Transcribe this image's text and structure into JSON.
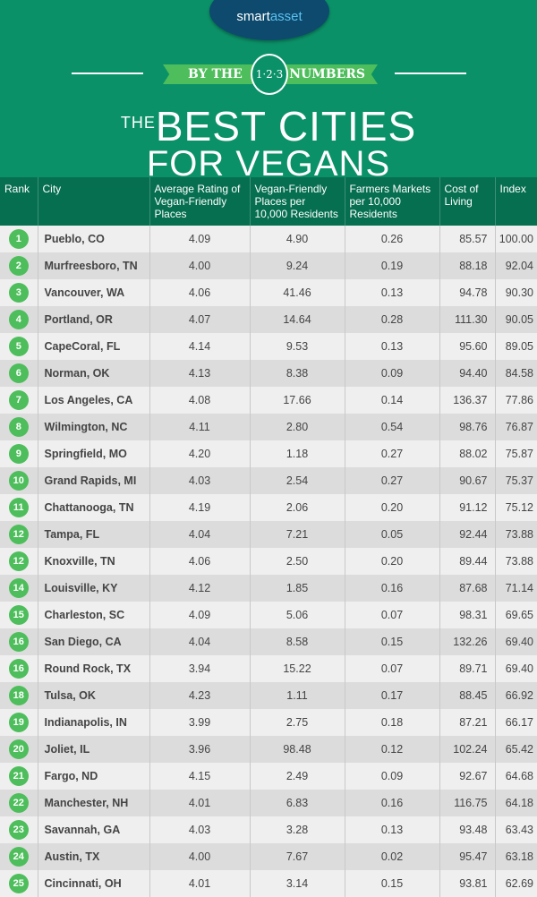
{
  "brand": {
    "logo_part1": "smart",
    "logo_part2": "asset"
  },
  "banner": {
    "left": "BY THE",
    "badge": "1·2·3",
    "right": "NUMBERS"
  },
  "title": {
    "the": "THE",
    "line1": "BEST CITIES",
    "line2": "FOR VEGANS"
  },
  "colors": {
    "background": "#0b9168",
    "header": "#066f50",
    "accent": "#4dbe5b",
    "logo": "#0d4a6e"
  },
  "table": {
    "headers": [
      "Rank",
      "City",
      "Average Rating of Vegan-Friendly Places",
      "Vegan-Friendly Places per 10,000 Residents",
      "Farmers Markets per 10,000 Residents",
      "Cost of Living",
      "Index"
    ],
    "rows": [
      [
        "1",
        "Pueblo, CO",
        "4.09",
        "4.90",
        "0.26",
        "85.57",
        "100.00"
      ],
      [
        "2",
        "Murfreesboro, TN",
        "4.00",
        "9.24",
        "0.19",
        "88.18",
        "92.04"
      ],
      [
        "3",
        "Vancouver, WA",
        "4.06",
        "41.46",
        "0.13",
        "94.78",
        "90.30"
      ],
      [
        "4",
        "Portland, OR",
        "4.07",
        "14.64",
        "0.28",
        "111.30",
        "90.05"
      ],
      [
        "5",
        "CapeCoral, FL",
        "4.14",
        "9.53",
        "0.13",
        "95.60",
        "89.05"
      ],
      [
        "6",
        "Norman, OK",
        "4.13",
        "8.38",
        "0.09",
        "94.40",
        "84.58"
      ],
      [
        "7",
        "Los Angeles, CA",
        "4.08",
        "17.66",
        "0.14",
        "136.37",
        "77.86"
      ],
      [
        "8",
        "Wilmington, NC",
        "4.11",
        "2.80",
        "0.54",
        "98.76",
        "76.87"
      ],
      [
        "9",
        "Springfield, MO",
        "4.20",
        "1.18",
        "0.27",
        "88.02",
        "75.87"
      ],
      [
        "10",
        "Grand Rapids, MI",
        "4.03",
        "2.54",
        "0.27",
        "90.67",
        "75.37"
      ],
      [
        "11",
        "Chattanooga, TN",
        "4.19",
        "2.06",
        "0.20",
        "91.12",
        "75.12"
      ],
      [
        "12",
        "Tampa, FL",
        "4.04",
        "7.21",
        "0.05",
        "92.44",
        "73.88"
      ],
      [
        "12",
        "Knoxville, TN",
        "4.06",
        "2.50",
        "0.20",
        "89.44",
        "73.88"
      ],
      [
        "14",
        "Louisville, KY",
        "4.12",
        "1.85",
        "0.16",
        "87.68",
        "71.14"
      ],
      [
        "15",
        "Charleston, SC",
        "4.09",
        "5.06",
        "0.07",
        "98.31",
        "69.65"
      ],
      [
        "16",
        "San Diego, CA",
        "4.04",
        "8.58",
        "0.15",
        "132.26",
        "69.40"
      ],
      [
        "16",
        "Round Rock, TX",
        "3.94",
        "15.22",
        "0.07",
        "89.71",
        "69.40"
      ],
      [
        "18",
        "Tulsa, OK",
        "4.23",
        "1.11",
        "0.17",
        "88.45",
        "66.92"
      ],
      [
        "19",
        "Indianapolis, IN",
        "3.99",
        "2.75",
        "0.18",
        "87.21",
        "66.17"
      ],
      [
        "20",
        "Joliet, IL",
        "3.96",
        "98.48",
        "0.12",
        "102.24",
        "65.42"
      ],
      [
        "21",
        "Fargo, ND",
        "4.15",
        "2.49",
        "0.09",
        "92.67",
        "64.68"
      ],
      [
        "22",
        "Manchester, NH",
        "4.01",
        "6.83",
        "0.16",
        "116.75",
        "64.18"
      ],
      [
        "23",
        "Savannah, GA",
        "4.03",
        "3.28",
        "0.13",
        "93.48",
        "63.43"
      ],
      [
        "24",
        "Austin, TX",
        "4.00",
        "7.67",
        "0.02",
        "95.47",
        "63.18"
      ],
      [
        "25",
        "Cincinnati, OH",
        "4.01",
        "3.14",
        "0.15",
        "93.81",
        "62.69"
      ]
    ]
  }
}
